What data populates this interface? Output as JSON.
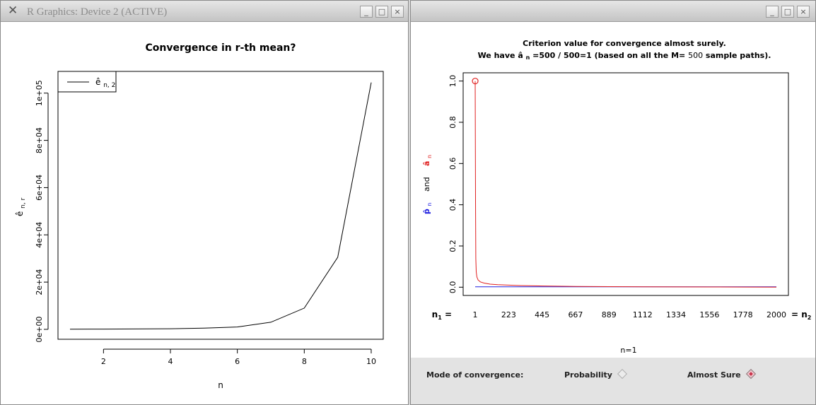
{
  "left_window": {
    "title": "R Graphics: Device 2 (ACTIVE)",
    "buttons": [
      "_",
      "□",
      "×"
    ]
  },
  "right_window": {
    "title": "",
    "buttons": [
      "_",
      "□",
      "×"
    ]
  },
  "chart_data": [
    {
      "type": "line",
      "title": "Convergence in r-th mean?",
      "xlabel": "n",
      "ylabel": "ê",
      "ylabel_sub": "n, r",
      "x": [
        1,
        2,
        3,
        4,
        5,
        6,
        7,
        8,
        9,
        10
      ],
      "series": [
        {
          "name": "ê",
          "name_sub": "n, 2",
          "values": [
            50,
            120,
            180,
            250,
            500,
            1000,
            3000,
            9000,
            30500,
            104500
          ]
        }
      ],
      "xlim": [
        1,
        10
      ],
      "ylim": [
        0,
        105000
      ],
      "xticks": [
        2,
        4,
        6,
        8,
        10
      ],
      "yticks": [
        0,
        20000,
        40000,
        60000,
        80000,
        100000
      ],
      "ytick_labels": [
        "0e+00",
        "2e+04",
        "4e+04",
        "6e+04",
        "8e+04",
        "1e+05"
      ],
      "legend_position": "top-left",
      "grid": false,
      "color": "#000000"
    },
    {
      "type": "line",
      "title": "Criterion value for convergence almost surely.",
      "subtitle": {
        "prefix": "We have  ",
        "symbol": "â",
        "symbol_sub": "n",
        "mid": "=500 / 500=1 (based on all the M= ",
        "m_value": "500",
        "suffix": " sample paths)."
      },
      "ylabel": {
        "p": "p̂",
        "p_sub": "n",
        "and": "and",
        "a": "â",
        "a_sub": "n"
      },
      "n_label": "n=1",
      "x": [
        1,
        3,
        5,
        8,
        12,
        20,
        35,
        60,
        100,
        150,
        223,
        300,
        445,
        667,
        889,
        1112,
        1334,
        1556,
        1778,
        2000
      ],
      "series": [
        {
          "name": "â",
          "values": [
            1.0,
            0.42,
            0.14,
            0.075,
            0.05,
            0.035,
            0.026,
            0.02,
            0.015,
            0.012,
            0.01,
            0.008,
            0.006,
            0.004,
            0.003,
            0.002,
            0.0015,
            0.001,
            0.0008,
            0.0005
          ],
          "color": "#e02020"
        },
        {
          "name": "p̂",
          "values": [
            0.002,
            0.002,
            0.002,
            0.002,
            0.002,
            0.002,
            0.002,
            0.002,
            0.002,
            0.002,
            0.002,
            0.002,
            0.002,
            0.002,
            0.002,
            0.002,
            0.002,
            0.002,
            0.002,
            0.002
          ],
          "color": "#2020e0"
        }
      ],
      "marker_point": {
        "x": 1,
        "y": 1.0
      },
      "xlim": [
        1,
        2000
      ],
      "ylim": [
        0,
        1.0
      ],
      "xticks": [
        1,
        223,
        445,
        667,
        889,
        1112,
        1334,
        1556,
        1778,
        2000
      ],
      "xtick_labels": [
        "1",
        "223",
        "445",
        "667",
        "889",
        "1112",
        "1334",
        "1556",
        "1778",
        "2000"
      ],
      "x_left_label": "n",
      "x_left_sub": "1",
      "x_left_eq": " = ",
      "x_right_eq": " = ",
      "x_right_label": "n",
      "x_right_sub": "2",
      "yticks": [
        0.0,
        0.2,
        0.4,
        0.6,
        0.8,
        1.0
      ],
      "ytick_labels": [
        "0.0",
        "0.2",
        "0.4",
        "0.6",
        "0.8",
        "1.0"
      ],
      "grid": false
    }
  ],
  "controls": {
    "mode_label": "Mode of convergence:",
    "options": [
      {
        "label": "Probability",
        "selected": false
      },
      {
        "label": "Almost Sure",
        "selected": true
      }
    ]
  },
  "colors": {
    "red": "#e02020",
    "blue": "#2020e0"
  }
}
